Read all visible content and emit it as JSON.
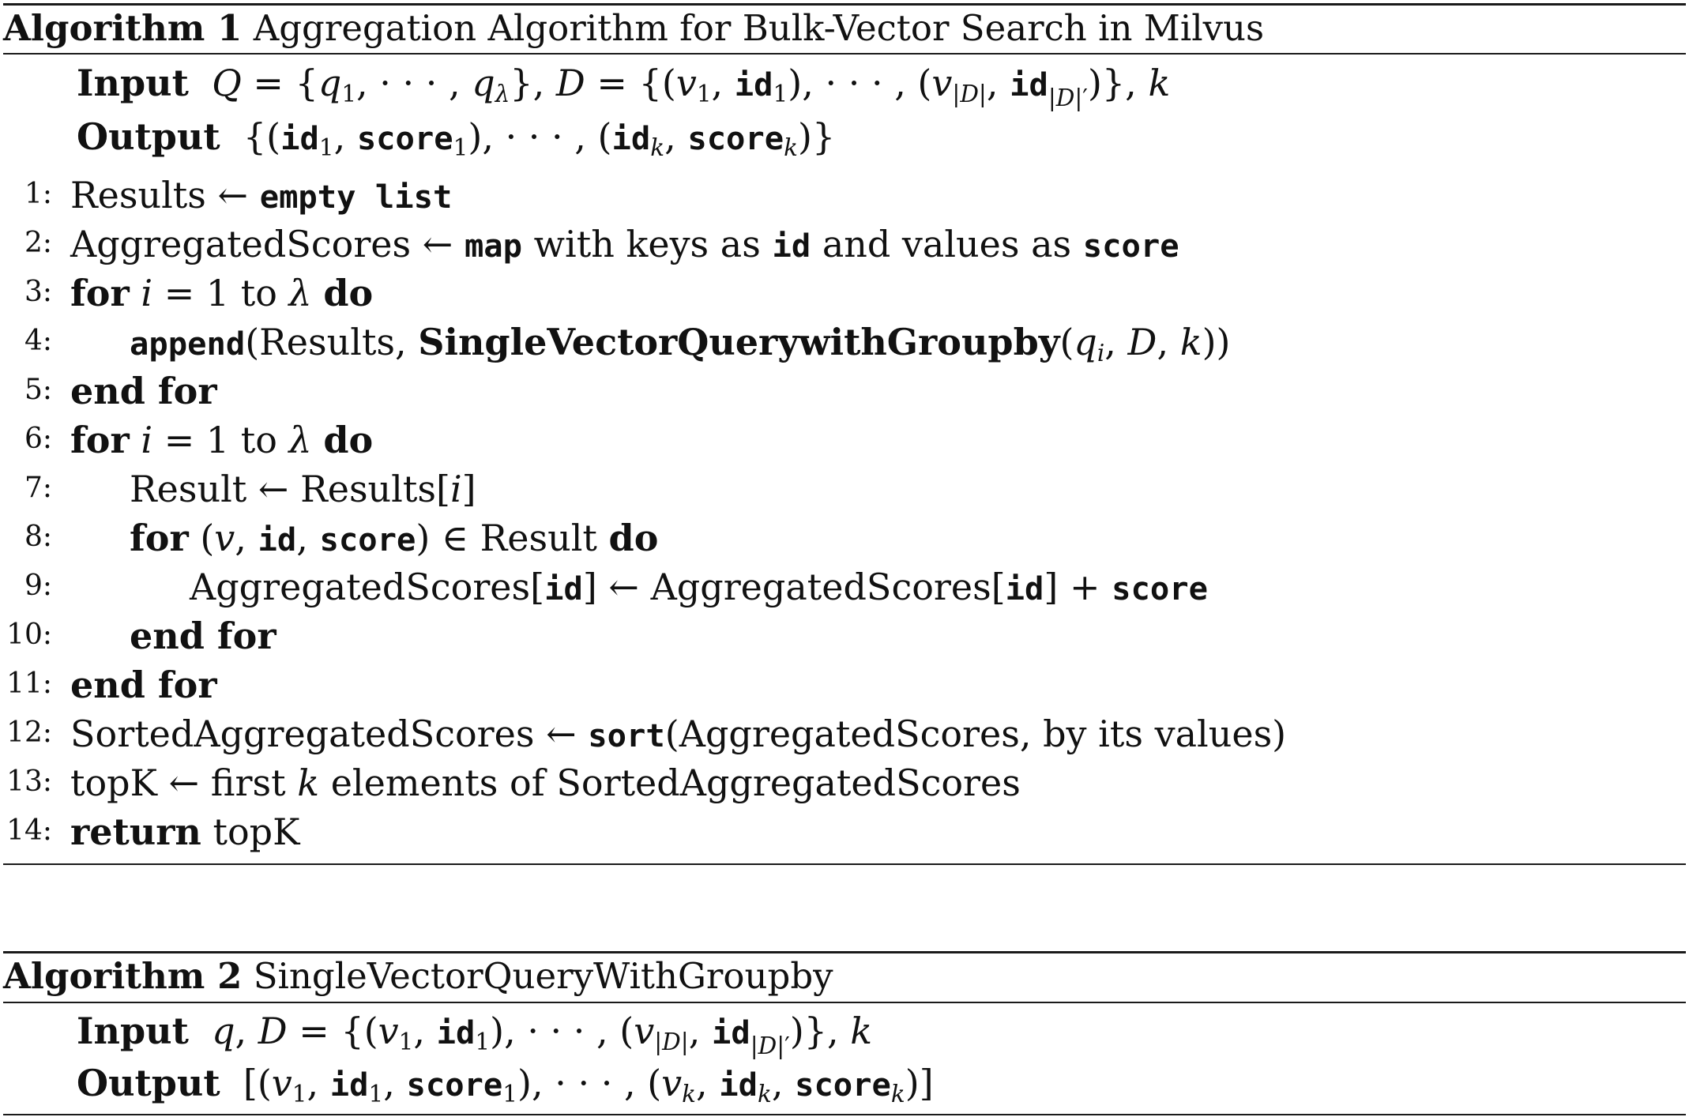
{
  "algorithm1": {
    "caption_label": "Algorithm 1",
    "caption_title": "Aggregation Algorithm for Bulk-Vector Search in Milvus",
    "input_label": "Input",
    "output_label": "Output",
    "lines": [
      {
        "num": "1:"
      },
      {
        "num": "2:"
      },
      {
        "num": "3:"
      },
      {
        "num": "4:"
      },
      {
        "num": "5:"
      },
      {
        "num": "6:"
      },
      {
        "num": "7:"
      },
      {
        "num": "8:"
      },
      {
        "num": "9:"
      },
      {
        "num": "10:"
      },
      {
        "num": "11:"
      },
      {
        "num": "12:"
      },
      {
        "num": "13:"
      },
      {
        "num": "14:"
      }
    ],
    "tokens": {
      "results": "Results",
      "arrow": "←",
      "empty_list": "empty list",
      "aggregated_scores": "AggregatedScores",
      "map": "map",
      "with_keys_as": "with keys as",
      "id": "id",
      "and_values_as": "and values as",
      "score": "score",
      "for": "for",
      "i": "i",
      "eq_1_to": "= 1 to",
      "lambda": "λ",
      "do": "do",
      "append": "append",
      "single_vector_query": "SingleVectorQuerywithGroupby",
      "end_for": "end for",
      "result": "Result",
      "sorted_aggregated_scores": "SortedAggregatedScores",
      "sort": "sort",
      "by_its_values": "by its values",
      "topk": "topK",
      "first": "first",
      "k": "k",
      "elements_of": "elements of",
      "return": "return"
    }
  },
  "algorithm2": {
    "caption_label": "Algorithm 2",
    "caption_title": "SingleVectorQueryWithGroupby",
    "input_label": "Input",
    "output_label": "Output"
  }
}
